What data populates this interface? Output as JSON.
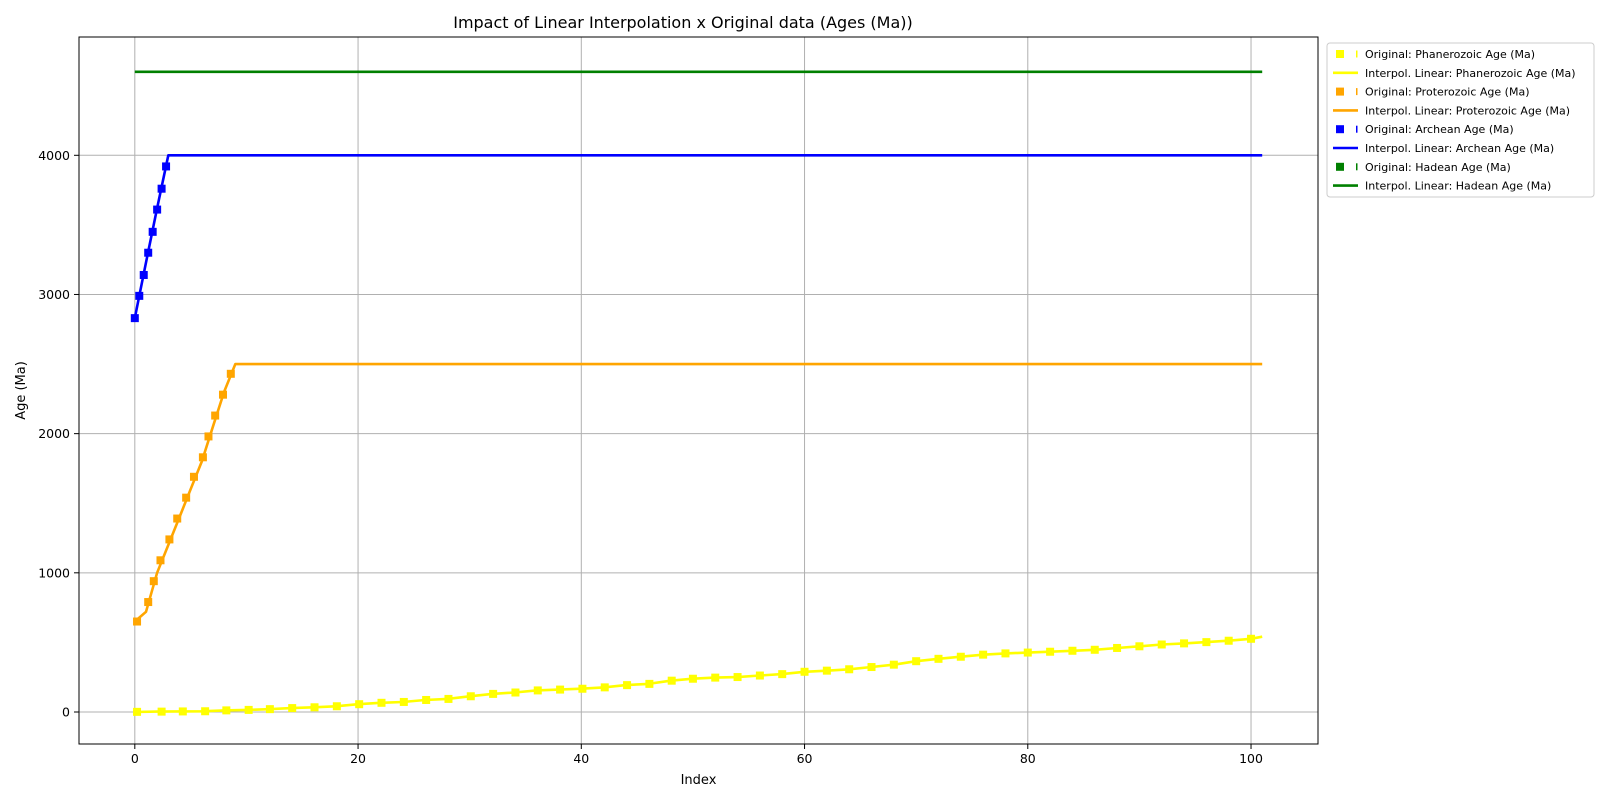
{
  "chart_data": {
    "type": "line",
    "title": "Impact of Linear Interpolation x Original data (Ages (Ma))",
    "xlabel": "Index",
    "ylabel": "Age (Ma)",
    "xlim": [
      -5,
      106
    ],
    "ylim": [
      -230,
      4850
    ],
    "xticks": [
      0,
      20,
      40,
      60,
      80,
      100
    ],
    "yticks": [
      0,
      1000,
      2000,
      3000,
      4000
    ],
    "grid": true,
    "legend_position": "outside-right-top",
    "series": [
      {
        "name": "Original: Phanerozoic Age (Ma)",
        "kind": "markers",
        "color": "#ffff00",
        "x": [
          0.2,
          2.4,
          4.3,
          6.3,
          8.2,
          10.2,
          12.1,
          14.1,
          16.1,
          18.1,
          20.1,
          22.1,
          24.1,
          26.1,
          28.1,
          30.1,
          32.1,
          34.1,
          36.1,
          38.1,
          40.1,
          42.1,
          44.1,
          46.1,
          48.1,
          50.0,
          52.0,
          54.0,
          56.0,
          58.0,
          60.0,
          62.0,
          64.0,
          66.0,
          68.0,
          70.0,
          72.0,
          74.0,
          76.0,
          78.0,
          80.0,
          82.0,
          84.0,
          86.0,
          88.0,
          90.0,
          92.0,
          94.0,
          96.0,
          98.0,
          100.0
        ],
        "y": [
          1,
          2.6,
          4,
          5.3,
          11.6,
          15,
          20.4,
          28.1,
          33.9,
          41.2,
          56,
          66,
          72.1,
          86.3,
          93.9,
          113,
          130,
          140,
          155,
          161,
          167,
          177,
          193,
          202,
          225,
          239,
          247,
          251,
          262,
          272,
          289,
          297,
          307,
          323,
          340,
          365,
          382,
          397,
          412,
          421,
          427,
          433,
          440,
          447,
          460,
          472,
          485,
          493,
          502,
          512,
          526
        ]
      },
      {
        "name": "Interpol. Linear: Phanerozoic Age (Ma)",
        "kind": "line",
        "color": "#ffff00",
        "x": [
          0,
          2,
          4,
          6,
          8,
          10,
          12,
          14,
          16,
          18,
          20,
          22,
          24,
          26,
          28,
          30,
          32,
          34,
          36,
          38,
          40,
          42,
          44,
          46,
          48,
          50,
          52,
          54,
          56,
          58,
          60,
          62,
          64,
          66,
          68,
          70,
          72,
          74,
          76,
          78,
          80,
          82,
          84,
          86,
          88,
          90,
          92,
          94,
          96,
          98,
          100,
          101
        ],
        "y": [
          0,
          2.6,
          4,
          5.3,
          11.6,
          15,
          20.4,
          28.1,
          33.9,
          41.2,
          56,
          66,
          72.1,
          86.3,
          93.9,
          113,
          130,
          140,
          155,
          161,
          167,
          177,
          193,
          202,
          225,
          239,
          247,
          251,
          262,
          272,
          289,
          297,
          307,
          323,
          340,
          365,
          382,
          397,
          412,
          421,
          427,
          433,
          440,
          447,
          460,
          472,
          485,
          493,
          502,
          512,
          526,
          541
        ]
      },
      {
        "name": "Original: Proterozoic Age (Ma)",
        "kind": "markers",
        "color": "#ffa500",
        "x": [
          0.2,
          1.2,
          1.7,
          2.3,
          3.1,
          3.8,
          4.6,
          5.3,
          6.1,
          6.6,
          7.2,
          7.9,
          8.6
        ],
        "y": [
          650,
          790,
          940,
          1090,
          1240,
          1390,
          1540,
          1690,
          1830,
          1980,
          2130,
          2280,
          2430
        ]
      },
      {
        "name": "Interpol. Linear: Proterozoic Age (Ma)",
        "kind": "line",
        "color": "#ffa500",
        "x": [
          0,
          1,
          2,
          3,
          4,
          5,
          6,
          7,
          8,
          9,
          101
        ],
        "y": [
          650,
          720,
          1000,
          1200,
          1400,
          1600,
          1800,
          2050,
          2300,
          2500,
          2500
        ]
      },
      {
        "name": "Original: Archean Age (Ma)",
        "kind": "markers",
        "color": "#0000ff",
        "x": [
          0.0,
          0.4,
          0.8,
          1.2,
          1.6,
          2.0,
          2.4,
          2.8
        ],
        "y": [
          2830,
          2990,
          3140,
          3300,
          3450,
          3610,
          3760,
          3920
        ]
      },
      {
        "name": "Interpol. Linear: Archean Age (Ma)",
        "kind": "line",
        "color": "#0000ff",
        "x": [
          0,
          1,
          2,
          3,
          101
        ],
        "y": [
          2830,
          3230,
          3620,
          4000,
          4000
        ]
      },
      {
        "name": "Original: Hadean Age (Ma)",
        "kind": "markers",
        "color": "#008000",
        "x": [],
        "y": []
      },
      {
        "name": "Interpol. Linear: Hadean Age (Ma)",
        "kind": "line",
        "color": "#008000",
        "x": [
          0,
          101
        ],
        "y": [
          4600,
          4600
        ]
      }
    ]
  }
}
